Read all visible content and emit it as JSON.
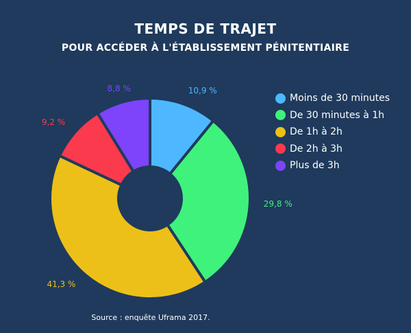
{
  "header": {
    "title": "TEMPS DE TRAJET",
    "subtitle": "POUR ACCÉDER À L'ÉTABLISSEMENT PÉNITENTIAIRE"
  },
  "footer": {
    "source": "Source : enquête Uframa 2017."
  },
  "colors": {
    "background": "#1f3a5c"
  },
  "chart_data": {
    "type": "pie",
    "variant": "donut",
    "legend_position": "right",
    "categories": [
      "Moins de 30 minutes",
      "De 30 minutes à 1h",
      "De 1h à 2h",
      "De 2h à 3h",
      "Plus de 3h"
    ],
    "values": [
      10.9,
      29.8,
      41.3,
      9.2,
      8.8
    ],
    "value_labels": [
      "10,9 %",
      "29,8 %",
      "41,3 %",
      "9,2 %",
      "8,8 %"
    ],
    "colors": [
      "#4db8ff",
      "#3ef27c",
      "#ecc018",
      "#fb3a4e",
      "#7d44fb"
    ]
  }
}
